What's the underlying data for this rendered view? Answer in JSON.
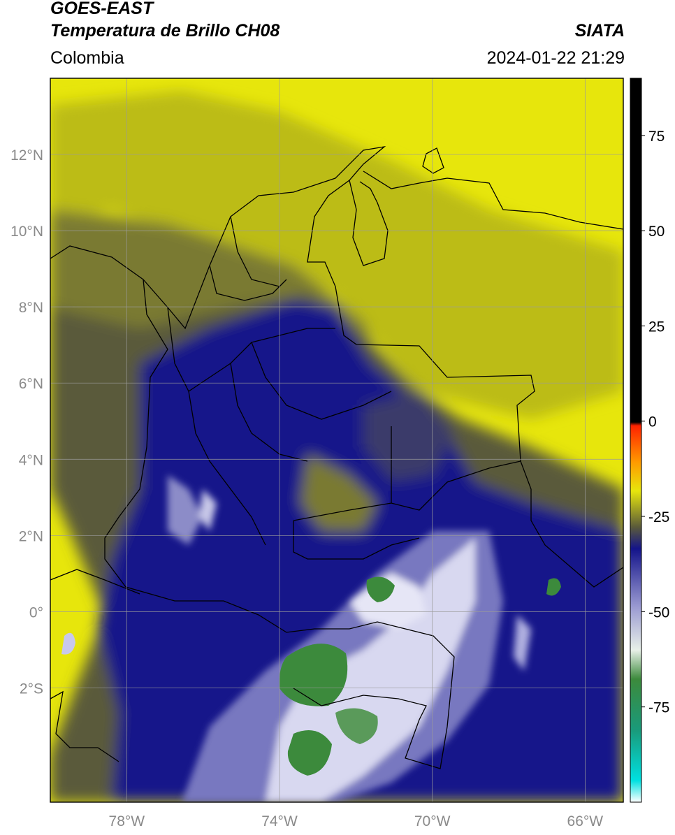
{
  "header": {
    "satellite": "GOES-EAST",
    "product": "Temperatura de Brillo CH08",
    "region": "Colombia",
    "agency": "SIATA",
    "datetime": "2024-01-22 21:29"
  },
  "map": {
    "lon_range": [
      -80.0,
      -65.0
    ],
    "lat_range": [
      -5.0,
      14.0
    ],
    "lat_ticks": [
      "12°N",
      "10°N",
      "8°N",
      "6°N",
      "4°N",
      "2°N",
      "0°",
      "2°S"
    ],
    "lat_values": [
      12,
      10,
      8,
      6,
      4,
      2,
      0,
      -2
    ],
    "lon_ticks": [
      "78°W",
      "74°W",
      "70°W",
      "66°W"
    ],
    "lon_values": [
      -78,
      -74,
      -70,
      -66
    ],
    "grid": true,
    "colors": {
      "warm_yellow": "#e7e60c",
      "olive": "#9a9a2a",
      "dark_olive": "#5a5a3a",
      "navy": "#14148a",
      "light_blue": "#9a9ad2",
      "white": "#f4f4f4",
      "green": "#3c8a3c",
      "coast_line": "#000000"
    }
  },
  "colorbar": {
    "ticks": [
      "75",
      "50",
      "25",
      "0",
      "-25",
      "-50",
      "-75"
    ],
    "tick_values": [
      75,
      50,
      25,
      0,
      -25,
      -50,
      -75
    ],
    "range": [
      -100,
      90
    ]
  }
}
